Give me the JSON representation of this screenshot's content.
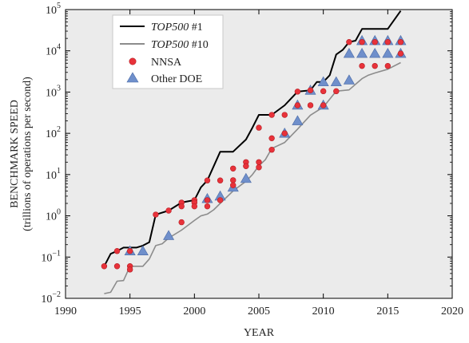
{
  "chart_data": {
    "type": "scatter",
    "xlabel": "YEAR",
    "ylabel_line1": "BENCHMARK SPEED",
    "ylabel_line2": "(trillions of operations per second)",
    "xlim": [
      1990,
      2020
    ],
    "ylim": [
      0.01,
      100000
    ],
    "yscale": "log",
    "x_ticks": [
      1990,
      1995,
      2000,
      2005,
      2010,
      2015,
      2020
    ],
    "x_tick_labels": [
      "1990",
      "1995",
      "2000",
      "2005",
      "2010",
      "2015",
      "2020"
    ],
    "y_ticks": [
      0.01,
      0.1,
      1,
      10,
      100,
      1000,
      10000,
      100000
    ],
    "y_tick_labels": [
      {
        "base": "10",
        "exp": "−2"
      },
      {
        "base": "10",
        "exp": "−1"
      },
      {
        "base": "10",
        "exp": "0"
      },
      {
        "base": "10",
        "exp": "1"
      },
      {
        "base": "10",
        "exp": "2"
      },
      {
        "base": "10",
        "exp": "3"
      },
      {
        "base": "10",
        "exp": "4"
      },
      {
        "base": "10",
        "exp": "5"
      }
    ],
    "grid": false,
    "background": "#ebebeb",
    "legend_position": "top-left",
    "legend": [
      {
        "name_italic": "TOP500",
        "name_rest": " #1",
        "kind": "line",
        "color": "#000000"
      },
      {
        "name_italic": "TOP500",
        "name_rest": " #10",
        "kind": "line",
        "color": "#8c8c8c"
      },
      {
        "name_italic": "",
        "name_rest": "NNSA",
        "kind": "circle",
        "color": "#e8323a"
      },
      {
        "name_italic": "",
        "name_rest": "Other DOE",
        "kind": "triangle",
        "color": "#6f8fcb"
      }
    ],
    "series": [
      {
        "name": "TOP500 #1",
        "kind": "line",
        "color": "#000000",
        "points": [
          [
            1993.0,
            0.06
          ],
          [
            1993.5,
            0.12
          ],
          [
            1994.0,
            0.14
          ],
          [
            1994.5,
            0.17
          ],
          [
            1995.5,
            0.17
          ],
          [
            1996.0,
            0.19
          ],
          [
            1996.5,
            0.23
          ],
          [
            1997.0,
            1.07
          ],
          [
            1998.0,
            1.34
          ],
          [
            1999.0,
            2.1
          ],
          [
            2000.0,
            2.4
          ],
          [
            2000.5,
            4.9
          ],
          [
            2001.0,
            7.2
          ],
          [
            2002.0,
            35.9
          ],
          [
            2003.0,
            35.9
          ],
          [
            2004.0,
            70.7
          ],
          [
            2004.5,
            136.8
          ],
          [
            2005.0,
            280.6
          ],
          [
            2006.0,
            280.6
          ],
          [
            2007.0,
            478.2
          ],
          [
            2008.0,
            1026
          ],
          [
            2009.0,
            1105
          ],
          [
            2009.5,
            1759
          ],
          [
            2010.0,
            1759
          ],
          [
            2010.5,
            2566
          ],
          [
            2011.0,
            8162
          ],
          [
            2011.5,
            10510
          ],
          [
            2012.0,
            16320
          ],
          [
            2012.5,
            17590
          ],
          [
            2013.0,
            33860
          ],
          [
            2015.0,
            33860
          ],
          [
            2016.0,
            93010
          ]
        ]
      },
      {
        "name": "TOP500 #10",
        "kind": "line",
        "color": "#8c8c8c",
        "points": [
          [
            1993.0,
            0.013
          ],
          [
            1993.5,
            0.014
          ],
          [
            1994.0,
            0.026
          ],
          [
            1994.5,
            0.027
          ],
          [
            1995.0,
            0.06
          ],
          [
            1996.0,
            0.06
          ],
          [
            1996.5,
            0.09
          ],
          [
            1997.0,
            0.19
          ],
          [
            1997.5,
            0.21
          ],
          [
            1998.0,
            0.29
          ],
          [
            1999.0,
            0.45
          ],
          [
            2000.0,
            0.77
          ],
          [
            2000.5,
            1.0
          ],
          [
            2001.0,
            1.1
          ],
          [
            2001.5,
            1.4
          ],
          [
            2002.0,
            2.0
          ],
          [
            2003.0,
            4.0
          ],
          [
            2004.0,
            6.9
          ],
          [
            2004.5,
            10.0
          ],
          [
            2005.0,
            16.3
          ],
          [
            2005.5,
            23.0
          ],
          [
            2006.0,
            42.9
          ],
          [
            2007.0,
            60.0
          ],
          [
            2008.0,
            126.5
          ],
          [
            2009.0,
            274.8
          ],
          [
            2010.0,
            433.5
          ],
          [
            2011.0,
            1050
          ],
          [
            2012.0,
            1129
          ],
          [
            2013.0,
            2120
          ],
          [
            2013.5,
            2570
          ],
          [
            2014.0,
            2900
          ],
          [
            2015.0,
            3580
          ],
          [
            2016.0,
            5170
          ]
        ]
      },
      {
        "name": "NNSA",
        "kind": "scatter",
        "marker": "circle",
        "color": "#e8323a",
        "points": [
          [
            1993.0,
            0.06
          ],
          [
            1994.0,
            0.14
          ],
          [
            1994.0,
            0.06
          ],
          [
            1995.0,
            0.14
          ],
          [
            1995.0,
            0.06
          ],
          [
            1995.0,
            0.05
          ],
          [
            1997.0,
            1.07
          ],
          [
            1998.0,
            1.34
          ],
          [
            1999.0,
            2.1
          ],
          [
            1999.0,
            1.7
          ],
          [
            1999.0,
            0.7
          ],
          [
            2000.0,
            2.4
          ],
          [
            2000.0,
            2.1
          ],
          [
            2000.0,
            1.7
          ],
          [
            2001.0,
            7.2
          ],
          [
            2001.0,
            2.4
          ],
          [
            2001.0,
            1.7
          ],
          [
            2002.0,
            7.2
          ],
          [
            2002.0,
            2.4
          ],
          [
            2003.0,
            14
          ],
          [
            2003.0,
            7.3
          ],
          [
            2003.0,
            5.5
          ],
          [
            2004.0,
            20
          ],
          [
            2004.0,
            16
          ],
          [
            2005.0,
            136.8
          ],
          [
            2005.0,
            20
          ],
          [
            2005.0,
            15
          ],
          [
            2006.0,
            280
          ],
          [
            2006.0,
            76
          ],
          [
            2006.0,
            40
          ],
          [
            2007.0,
            280
          ],
          [
            2007.0,
            100
          ],
          [
            2008.0,
            1026
          ],
          [
            2008.0,
            478
          ],
          [
            2009.0,
            1105
          ],
          [
            2009.0,
            478
          ],
          [
            2010.0,
            1050
          ],
          [
            2010.0,
            478
          ],
          [
            2011.0,
            1050
          ],
          [
            2012.0,
            16320
          ],
          [
            2013.0,
            16320
          ],
          [
            2013.0,
            4300
          ],
          [
            2014.0,
            16320
          ],
          [
            2014.0,
            4300
          ],
          [
            2015.0,
            16320
          ],
          [
            2015.0,
            4300
          ],
          [
            2016.0,
            16320
          ],
          [
            2016.0,
            8600
          ]
        ]
      },
      {
        "name": "Other DOE",
        "kind": "scatter",
        "marker": "triangle",
        "color": "#6f8fcb",
        "points": [
          [
            1995.0,
            0.14
          ],
          [
            1996.0,
            0.14
          ],
          [
            1998.0,
            0.33
          ],
          [
            2001.0,
            2.6
          ],
          [
            2002.0,
            3.0
          ],
          [
            2003.0,
            4.9
          ],
          [
            2004.0,
            8.0
          ],
          [
            2007.0,
            100
          ],
          [
            2008.0,
            200
          ],
          [
            2008.0,
            480
          ],
          [
            2009.0,
            1100
          ],
          [
            2010.0,
            1759
          ],
          [
            2010.0,
            480
          ],
          [
            2011.0,
            1759
          ],
          [
            2012.0,
            1950
          ],
          [
            2012.0,
            8600
          ],
          [
            2013.0,
            17590
          ],
          [
            2013.0,
            8600
          ],
          [
            2014.0,
            17590
          ],
          [
            2014.0,
            8600
          ],
          [
            2015.0,
            17590
          ],
          [
            2015.0,
            8600
          ],
          [
            2016.0,
            17590
          ],
          [
            2016.0,
            8600
          ]
        ]
      }
    ]
  }
}
